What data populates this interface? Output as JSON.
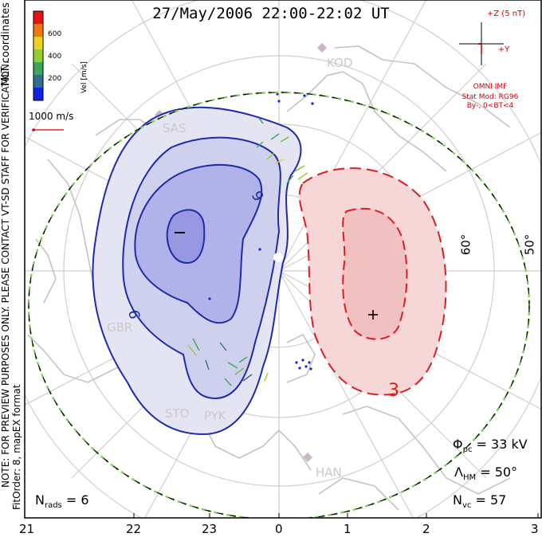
{
  "title": "27/May/2006 22:00-22:02 UT",
  "mlt_labels": [
    "21",
    "22",
    "23",
    "0",
    "1",
    "2",
    "3"
  ],
  "lat_labels": [
    "60°",
    "50°"
  ],
  "colorbar": {
    "title": "Vel [m/s]",
    "ticks": [
      "600",
      "400",
      "200"
    ],
    "colors": [
      "#1020e8",
      "#2f6f8f",
      "#3aa85a",
      "#8fd030",
      "#f0d020",
      "#f07a10",
      "#e81010"
    ]
  },
  "coords_label": "MLT coordinates",
  "vector_scale": "1000 m/s",
  "imf": {
    "z_label": "+Z (5 nT)",
    "y_label": "+Y",
    "source": "OMNI IMF",
    "model": "Stat Mod: RG96",
    "condition": "By-, 0<BT<4"
  },
  "stations": [
    "KOD",
    "SAS",
    "GBR",
    "STO",
    "PYK",
    "HAN"
  ],
  "contour_labels": {
    "negative": [
      "9",
      "9"
    ],
    "positive": [
      "3"
    ]
  },
  "stats": {
    "pcp_symbol": "Φ",
    "pcp_sub": "pc",
    "pcp_value": "= 33 kV",
    "hm_symbol": "Λ",
    "hm_sub": "HM",
    "hm_value": "= 50°",
    "nvc_symbol": "N",
    "nvc_sub": "vc",
    "nvc_value": "= 57",
    "nrads_symbol": "N",
    "nrads_sub": "rads",
    "nrads_value": "= 6"
  },
  "note": "NOTE: FOR PREVIEW PURPOSES ONLY. PLEASE CONTACT VT-SD STAFF FOR VERIFICATION.",
  "fit_info": "FitOrder: 8, mapEX format",
  "colors": {
    "neg_fill": "#e4e4f2",
    "neg_line": "#1d2ca8",
    "pos_fill": "#f6d6d6",
    "pos_line": "#d82020",
    "hm_boundary": "#7ad650"
  }
}
